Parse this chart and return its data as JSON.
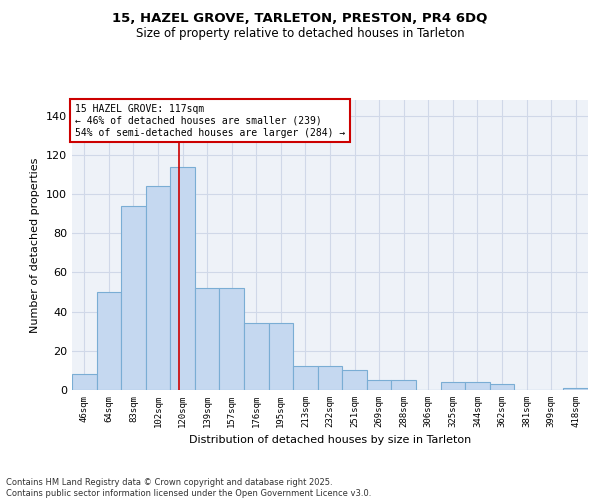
{
  "title_line1": "15, HAZEL GROVE, TARLETON, PRESTON, PR4 6DQ",
  "title_line2": "Size of property relative to detached houses in Tarleton",
  "xlabel": "Distribution of detached houses by size in Tarleton",
  "ylabel": "Number of detached properties",
  "categories": [
    "46sqm",
    "64sqm",
    "83sqm",
    "102sqm",
    "120sqm",
    "139sqm",
    "157sqm",
    "176sqm",
    "195sqm",
    "213sqm",
    "232sqm",
    "251sqm",
    "269sqm",
    "288sqm",
    "306sqm",
    "325sqm",
    "344sqm",
    "362sqm",
    "381sqm",
    "399sqm",
    "418sqm"
  ],
  "values": [
    8,
    50,
    94,
    104,
    114,
    52,
    52,
    34,
    34,
    12,
    12,
    10,
    5,
    5,
    0,
    4,
    4,
    3,
    0,
    0,
    1
  ],
  "bar_color": "#c5d8f0",
  "bar_edge_color": "#7aadd4",
  "annotation_text": "15 HAZEL GROVE: 117sqm\n← 46% of detached houses are smaller (239)\n54% of semi-detached houses are larger (284) →",
  "annotation_box_color": "#ffffff",
  "annotation_box_edge_color": "#cc0000",
  "vline_color": "#cc0000",
  "vline_x": 3.85,
  "ylim": [
    0,
    148
  ],
  "yticks": [
    0,
    20,
    40,
    60,
    80,
    100,
    120,
    140
  ],
  "grid_color": "#d0d8e8",
  "bg_color": "#eef2f8",
  "footnote": "Contains HM Land Registry data © Crown copyright and database right 2025.\nContains public sector information licensed under the Open Government Licence v3.0."
}
